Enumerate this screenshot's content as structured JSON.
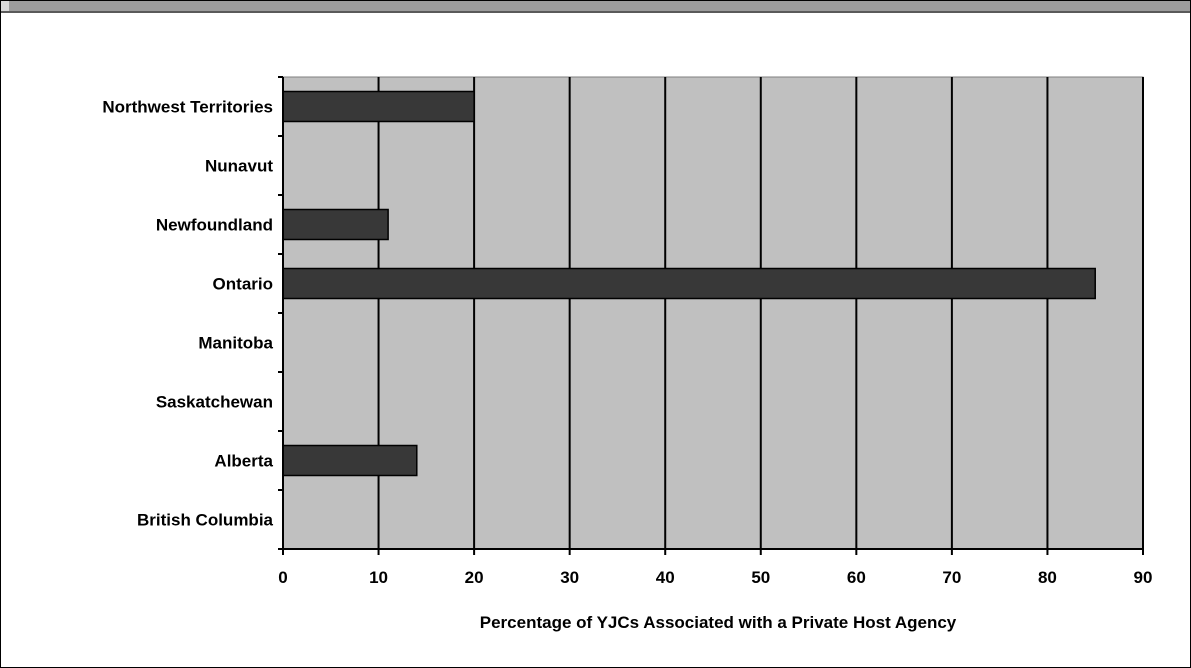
{
  "chart_data": {
    "type": "bar",
    "orientation": "horizontal",
    "categories": [
      "Northwest Territories",
      "Nunavut",
      "Newfoundland",
      "Ontario",
      "Manitoba",
      "Saskatchewan",
      "Alberta",
      "British Columbia"
    ],
    "values": [
      20,
      0,
      11,
      85,
      0,
      0,
      14,
      0
    ],
    "xlabel": "Percentage of YJCs Associated with a Private Host Agency",
    "ylabel": "",
    "xlim": [
      0,
      90
    ],
    "xticks": [
      "0",
      "10",
      "20",
      "30",
      "40",
      "50",
      "60",
      "70",
      "80",
      "90"
    ],
    "grid": "vertical",
    "colors": {
      "bar": "#383838",
      "plot_background": "#c0c0c0",
      "gridline": "#000000"
    }
  }
}
